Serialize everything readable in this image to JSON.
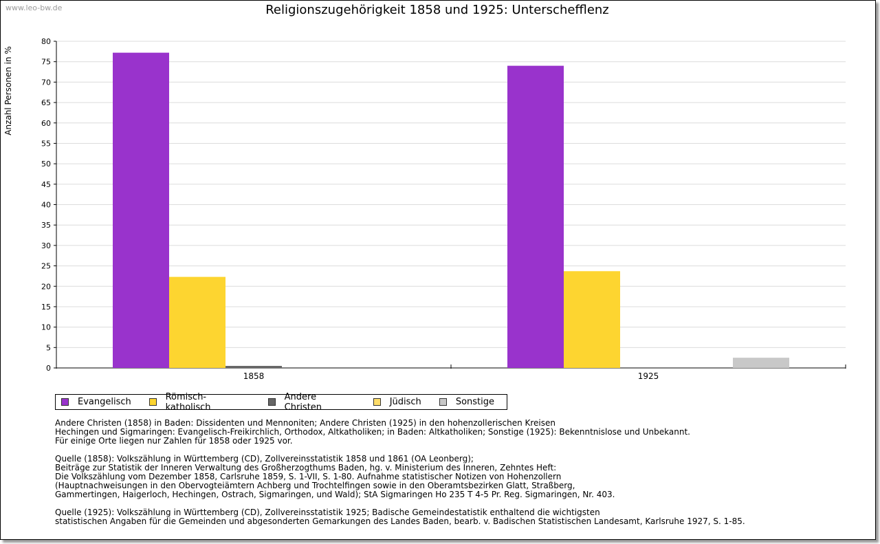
{
  "watermark": "www.leo-bw.de",
  "chart_data": {
    "type": "bar",
    "title": "Religionszugehörigkeit 1858 und 1925: Unterschefflenz",
    "xlabel": "",
    "ylabel": "Anzahl Personen in %",
    "ylim": [
      0,
      80
    ],
    "ytick_step": 5,
    "grid": true,
    "categories": [
      "1858",
      "1925"
    ],
    "series": [
      {
        "name": "Evangelisch",
        "color": "#9933cc",
        "values": [
          77.2,
          74.0
        ]
      },
      {
        "name": "Römisch-katholisch",
        "color": "#fdd530",
        "values": [
          22.3,
          23.7
        ]
      },
      {
        "name": "Andere Christen",
        "color": "#666666",
        "values": [
          0.5,
          0
        ]
      },
      {
        "name": "Jüdisch",
        "color": "#fddd6a",
        "values": [
          0,
          0
        ]
      },
      {
        "name": "Sonstige",
        "color": "#c8c8c8",
        "values": [
          0,
          2.5
        ]
      }
    ]
  },
  "notes": [
    "Andere Christen (1858) in Baden: Dissidenten und Mennoniten; Andere Christen (1925) in den hohenzollerischen Kreisen\nHechingen und Sigmaringen: Evangelisch-Freikirchlich, Orthodox, Altkatholiken; in Baden: Altkatholiken; Sonstige (1925): Bekenntnislose und Unbekannt.\nFür einige Orte liegen nur Zahlen für 1858 oder 1925 vor.",
    "Quelle (1858): Volkszählung in Württemberg (CD), Zollvereinsstatistik 1858 und 1861 (OA Leonberg);\nBeiträge zur Statistik der Inneren Verwaltung des Großherzogthums Baden, hg. v. Ministerium des Inneren, Zehntes Heft:\nDie Volkszählung vom Dezember 1858, Carlsruhe 1859, S. 1-VII, S. 1-80. Aufnahme statistischer Notizen von Hohenzollern\n(Hauptnachweisungen in den Obervogteiämtern Achberg und Trochtelfingen sowie in den Oberamtsbezirken Glatt, Straßberg,\nGammertingen, Haigerloch, Hechingen, Ostrach, Sigmaringen, und Wald); StA Sigmaringen Ho 235 T 4-5 Pr. Reg. Sigmaringen, Nr. 403.",
    "Quelle (1925): Volkszählung in Württemberg (CD), Zollvereinsstatistik 1925; Badische Gemeindestatistik enthaltend die wichtigsten\nstatistischen Angaben für die Gemeinden und abgesonderten Gemarkungen des Landes Baden, bearb. v. Badischen Statistischen Landesamt, Karlsruhe 1927, S. 1-85."
  ]
}
